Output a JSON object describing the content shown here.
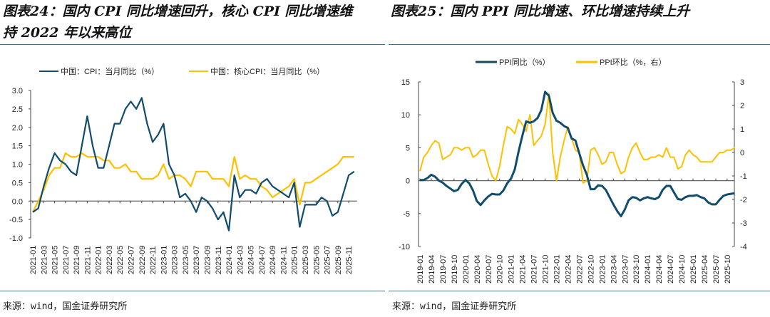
{
  "left": {
    "title_line1": "图表24：国内 CPI 同比增速回升，核心 CPI 同比增速维",
    "title_line2": "持 2022 年以来高位",
    "source": "来源：wind，国金证券研究所"
  },
  "right": {
    "title": "图表25：国内 PPI 同比增速、环比增速持续上升",
    "source": "来源：wind，国金证券研究所"
  },
  "colors": {
    "navy": "#0f4c6e",
    "gold": "#ffc000"
  },
  "chart_data": [
    {
      "type": "line",
      "title": "国内CPI同比增速回升，核心CPI同比增速维持2022年以来高位",
      "ylim": [
        -1.0,
        3.0
      ],
      "yticks": [
        "3.0",
        "2.5",
        "2.0",
        "1.5",
        "1.0",
        "0.5",
        "0.0",
        "-0.5",
        "-1.0"
      ],
      "start": "2021-01",
      "xtick_labels": [
        "2021-01",
        "2021-03",
        "2021-05",
        "2021-07",
        "2021-09",
        "2021-11",
        "2022-01",
        "2022-03",
        "2022-05",
        "2022-07",
        "2022-09",
        "2022-11",
        "2023-01",
        "2023-03",
        "2023-05",
        "2023-07",
        "2023-09",
        "2023-11",
        "2024-01",
        "2024-03",
        "2024-05",
        "2024-07",
        "2024-09",
        "2024-11",
        "2025-01",
        "2025-03",
        "2025-05",
        "2025-07",
        "2025-09",
        "2025-11"
      ],
      "legend_position": "top",
      "series": [
        {
          "name": "中国：CPI：当月同比（%）",
          "color": "#0f4c6e",
          "values": [
            -0.3,
            -0.2,
            0.4,
            0.9,
            1.3,
            1.1,
            1.0,
            0.8,
            0.7,
            1.5,
            2.3,
            1.5,
            0.9,
            0.9,
            1.5,
            2.1,
            2.1,
            2.5,
            2.7,
            2.5,
            2.8,
            2.1,
            1.6,
            1.8,
            2.1,
            1.0,
            0.7,
            0.1,
            0.2,
            0.0,
            -0.3,
            0.1,
            0.0,
            -0.2,
            -0.5,
            -0.3,
            -0.8,
            0.7,
            0.1,
            0.3,
            0.3,
            0.2,
            0.5,
            0.6,
            0.4,
            0.3,
            0.2,
            0.1,
            0.5,
            -0.7,
            -0.1,
            -0.1,
            -0.1,
            0.1,
            0.0,
            -0.4,
            -0.3,
            0.2,
            0.7,
            0.8
          ]
        },
        {
          "name": "中国：核心CPI：当月同比（%）",
          "color": "#ffc000",
          "values": [
            -0.3,
            0.0,
            0.3,
            0.7,
            0.9,
            0.9,
            1.3,
            1.2,
            1.2,
            1.3,
            1.2,
            1.2,
            1.2,
            1.1,
            1.1,
            0.9,
            0.9,
            1.0,
            0.8,
            0.8,
            0.6,
            0.6,
            0.6,
            0.7,
            1.0,
            0.6,
            0.7,
            0.7,
            0.6,
            0.4,
            0.8,
            0.8,
            0.8,
            0.6,
            0.6,
            0.6,
            0.4,
            1.2,
            0.6,
            0.7,
            0.6,
            0.6,
            0.4,
            0.3,
            0.1,
            0.2,
            0.3,
            0.4,
            0.6,
            -0.1,
            0.5,
            0.5,
            0.6,
            0.7,
            0.8,
            0.9,
            1.0,
            1.2,
            1.2,
            1.2
          ]
        }
      ]
    },
    {
      "type": "line",
      "title": "国内PPI同比增速、环比增速持续上升",
      "ylim": [
        -10,
        15
      ],
      "y2lim": [
        -4,
        3
      ],
      "yticks": [
        "15",
        "10",
        "5",
        "0",
        "-5",
        "-10"
      ],
      "y2ticks": [
        "3",
        "2",
        "1",
        "0",
        "-1",
        "-2",
        "-3",
        "-4"
      ],
      "start": "2019-01",
      "xtick_labels": [
        "2019-01",
        "2019-04",
        "2019-07",
        "2019-10",
        "2020-01",
        "2020-04",
        "2020-07",
        "2020-10",
        "2021-01",
        "2021-04",
        "2021-07",
        "2021-10",
        "2022-01",
        "2022-04",
        "2022-07",
        "2022-10",
        "2023-01",
        "2023-04",
        "2023-07",
        "2023-10",
        "2024-01",
        "2024-04",
        "2024-07",
        "2024-10",
        "2025-01",
        "2025-04",
        "2025-07",
        "2025-10"
      ],
      "legend_position": "top",
      "series": [
        {
          "name": "PPI同比（%）",
          "color": "#0f4c6e",
          "axis": "left",
          "values": [
            0.1,
            0.1,
            0.4,
            0.9,
            0.6,
            0.0,
            -0.3,
            -0.8,
            -1.2,
            -1.6,
            -1.4,
            -0.5,
            0.1,
            -0.4,
            -1.5,
            -3.1,
            -3.7,
            -3.0,
            -2.4,
            -2.0,
            -2.1,
            -2.1,
            -1.5,
            -0.4,
            0.3,
            1.7,
            4.4,
            6.8,
            9.0,
            8.8,
            9.0,
            9.5,
            10.7,
            13.5,
            12.9,
            10.3,
            9.1,
            8.8,
            8.3,
            8.0,
            6.4,
            6.1,
            4.2,
            2.3,
            0.9,
            -1.3,
            -1.3,
            -0.7,
            -0.8,
            -1.4,
            -2.5,
            -3.6,
            -4.6,
            -5.4,
            -4.4,
            -3.0,
            -2.5,
            -2.6,
            -3.0,
            -2.7,
            -2.5,
            -2.7,
            -2.8,
            -2.5,
            -1.4,
            -0.8,
            -0.8,
            -1.8,
            -2.8,
            -2.9,
            -2.5,
            -2.3,
            -2.3,
            -2.2,
            -2.5,
            -2.7,
            -3.3,
            -3.6,
            -3.6,
            -2.9,
            -2.3,
            -2.1,
            -2.0,
            -1.9
          ]
        },
        {
          "name": "PPI环比（%，右）",
          "color": "#ffc000",
          "axis": "right",
          "values": [
            -0.8,
            -0.2,
            0.0,
            0.3,
            0.5,
            0.4,
            -0.3,
            -0.2,
            -0.1,
            0.2,
            0.2,
            0.1,
            0.2,
            0.2,
            -0.2,
            -0.1,
            0.1,
            0.1,
            -0.5,
            -1.0,
            -1.2,
            -0.6,
            0.3,
            1.1,
            1.0,
            0.8,
            1.4,
            1.2,
            0.9,
            1.6,
            0.3,
            0.5,
            0.7,
            1.2,
            2.5,
            0.0,
            -1.2,
            -0.2,
            0.5,
            1.1,
            0.6,
            0.1,
            0.0,
            -1.3,
            -1.2,
            0.1,
            0.2,
            -0.1,
            -0.5,
            -0.4,
            0.0,
            0.0,
            -0.5,
            -0.9,
            -0.8,
            -0.2,
            0.2,
            0.4,
            0.0,
            -0.3,
            -0.3,
            -0.2,
            -0.2,
            -0.1,
            -0.2,
            0.2,
            -0.2,
            -0.2,
            -0.7,
            -0.6,
            -0.1,
            0.1,
            -0.1,
            -0.2,
            -0.4,
            -0.4,
            -0.4,
            -0.4,
            -0.2,
            0.0,
            0.0,
            0.1,
            0.1,
            0.2
          ]
        }
      ]
    }
  ]
}
